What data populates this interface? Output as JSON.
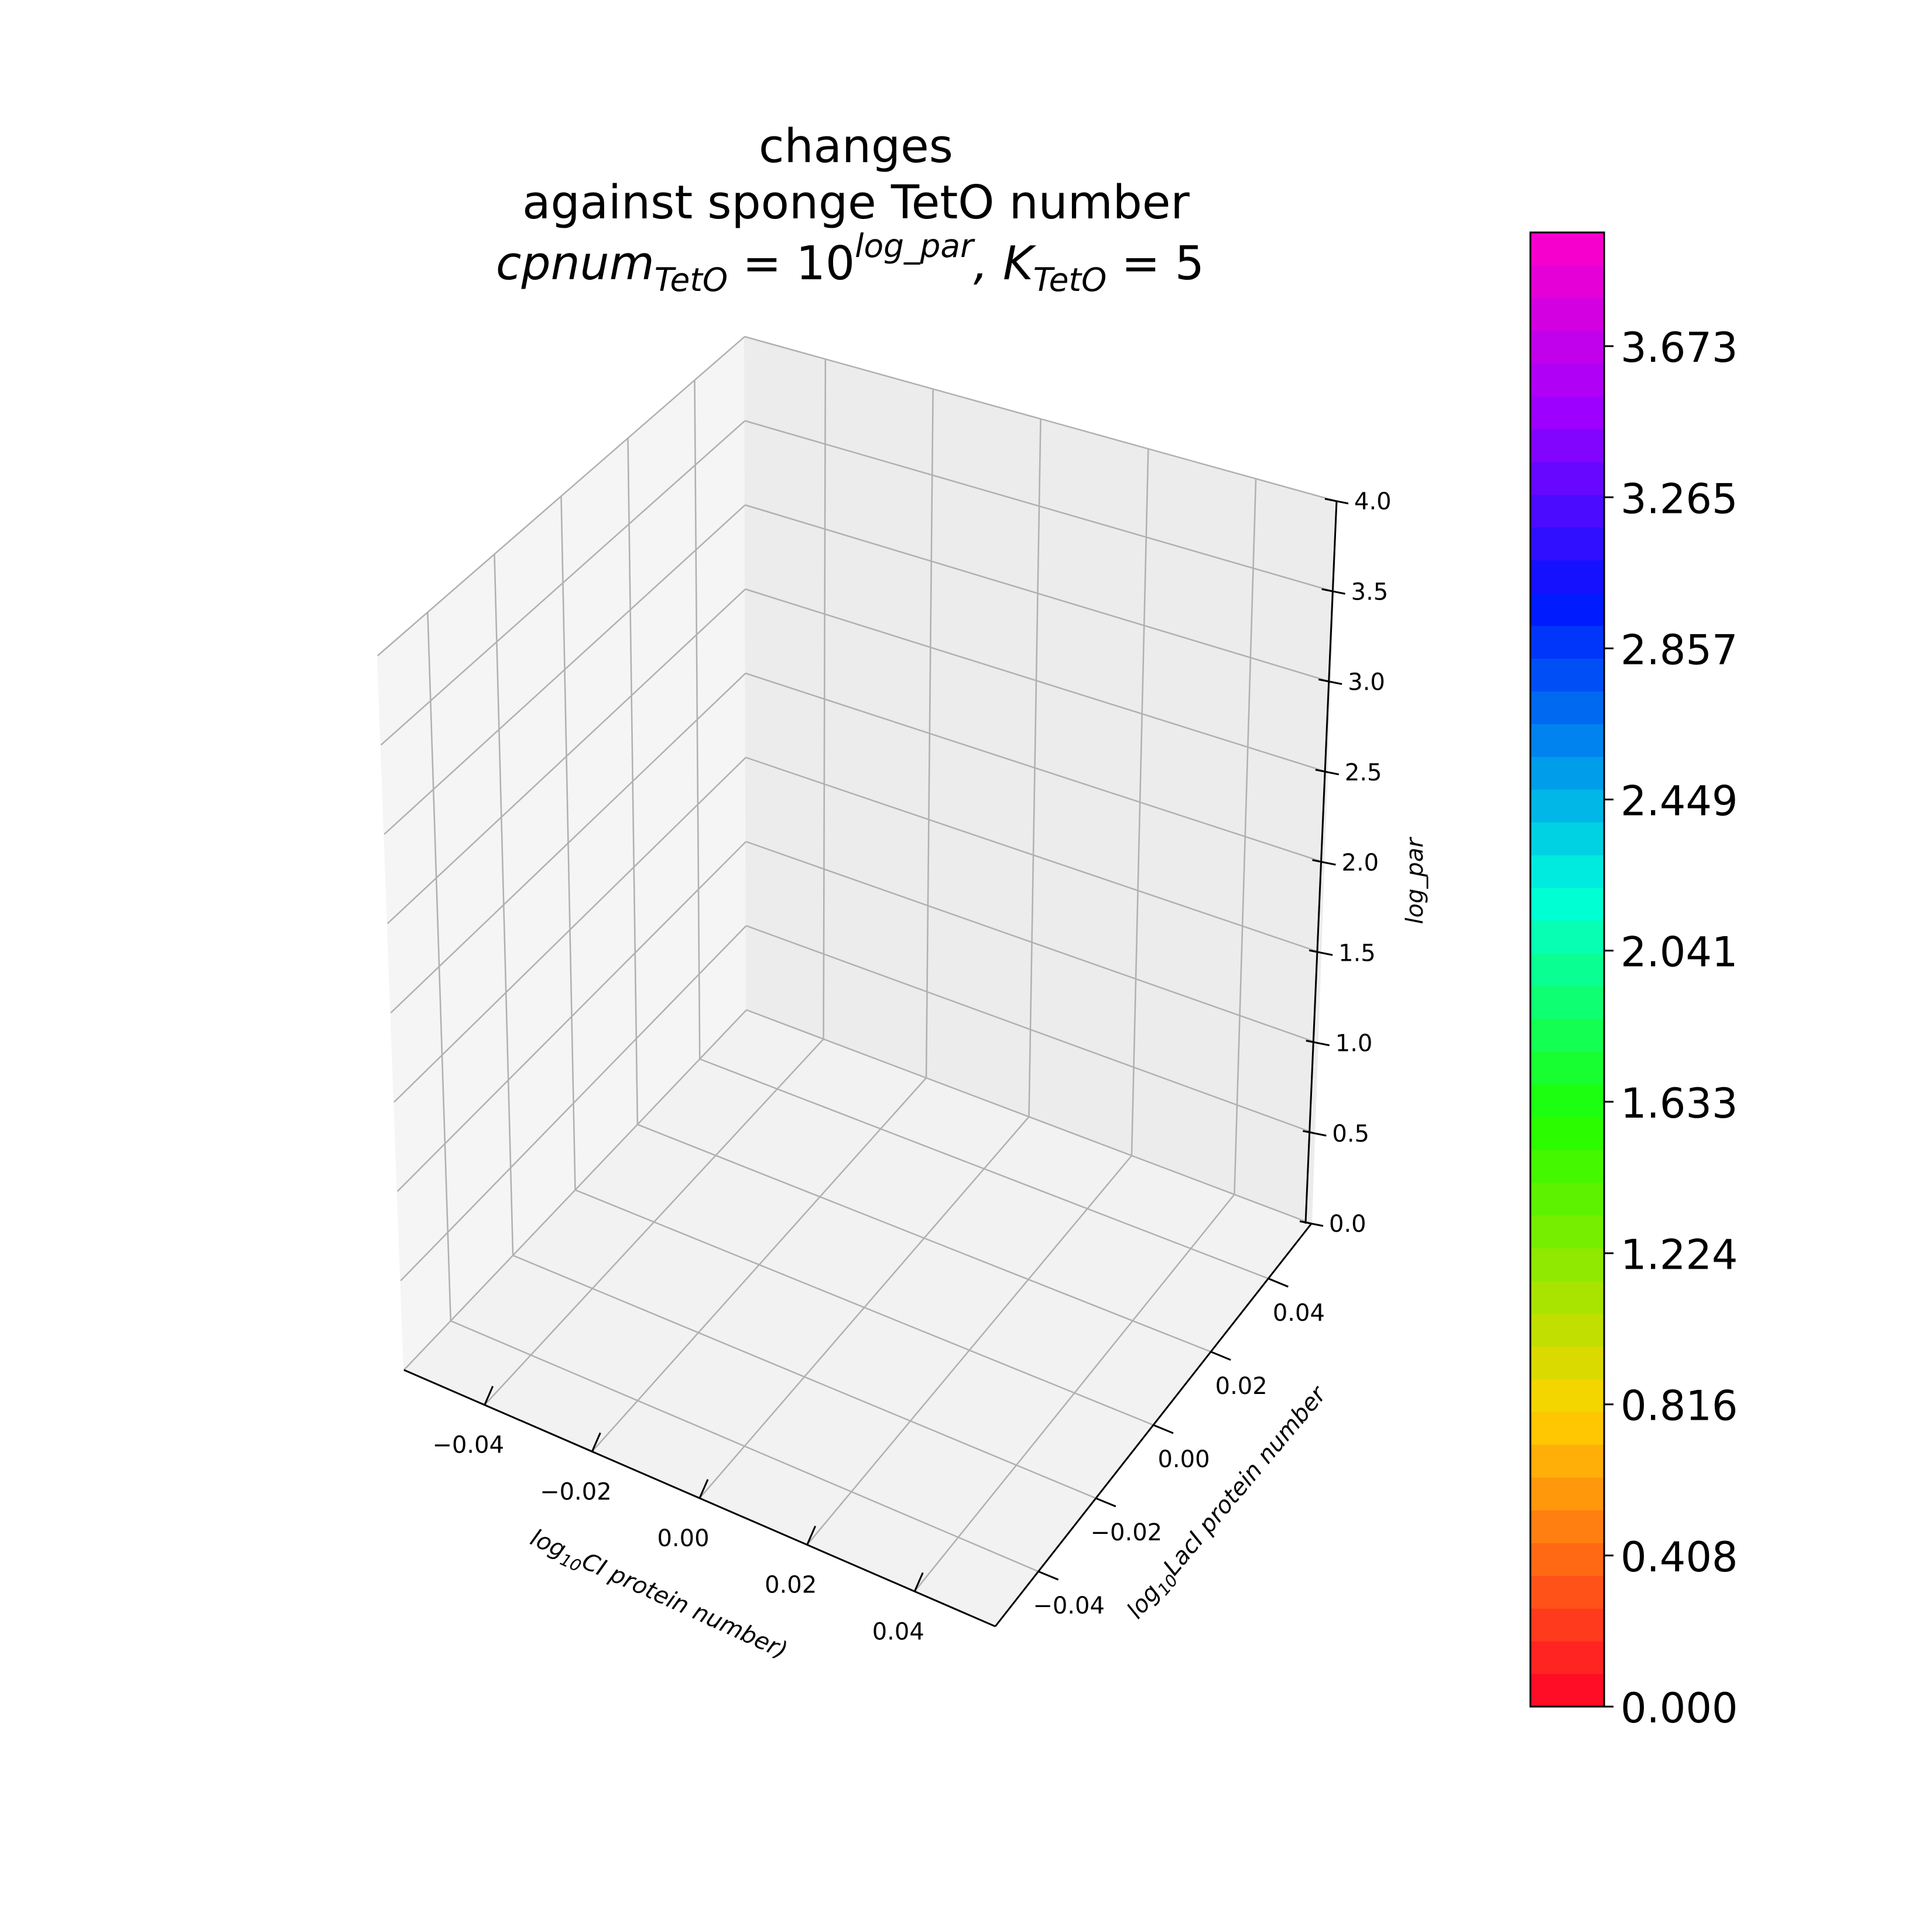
{
  "chart_data": {
    "type": "surface",
    "title": {
      "line1": "changes",
      "line2": "against sponge TetO number",
      "line3_base": "cpnum",
      "line3_sub": "TetO",
      "line3_eq": " = 10",
      "line3_sup": "log_par",
      "line3_k": ",  K",
      "line3_ksub": "TetO",
      "line3_kval": " = 5"
    },
    "xlabel": {
      "prefix": "log",
      "sub": "10",
      "rest": "CI protein number)"
    },
    "ylabel": {
      "prefix": "log",
      "sub": "10",
      "rest": "LacI protein number"
    },
    "zlabel": "log_par",
    "xlim": [
      -0.055,
      0.055
    ],
    "ylim": [
      -0.055,
      0.055
    ],
    "zlim": [
      0.0,
      4.0
    ],
    "x_ticks": [
      -0.04,
      -0.02,
      0.0,
      0.02,
      0.04
    ],
    "x_tick_labels": [
      "−0.04",
      "−0.02",
      "0.00",
      "0.02",
      "0.04"
    ],
    "y_ticks": [
      -0.04,
      -0.02,
      0.0,
      0.02,
      0.04
    ],
    "y_tick_labels": [
      "−0.04",
      "−0.02",
      "0.00",
      "0.02",
      "0.04"
    ],
    "z_ticks": [
      0.0,
      0.5,
      1.0,
      1.5,
      2.0,
      2.5,
      3.0,
      3.5,
      4.0
    ],
    "z_tick_labels": [
      "0.0",
      "0.5",
      "1.0",
      "1.5",
      "2.0",
      "2.5",
      "3.0",
      "3.5",
      "4.0"
    ],
    "grid": true,
    "series": [],
    "colorbar": {
      "colormap": "gist_rainbow_r",
      "range": [
        0.0,
        3.98
      ],
      "levels": 45,
      "tick_values": [
        0.0,
        0.408,
        0.816,
        1.224,
        1.633,
        2.041,
        2.449,
        2.857,
        3.265,
        3.673
      ],
      "tick_labels": [
        "0.000",
        "0.408",
        "0.816",
        "1.224",
        "1.633",
        "2.041",
        "2.449",
        "2.857",
        "3.265",
        "3.673"
      ]
    }
  }
}
